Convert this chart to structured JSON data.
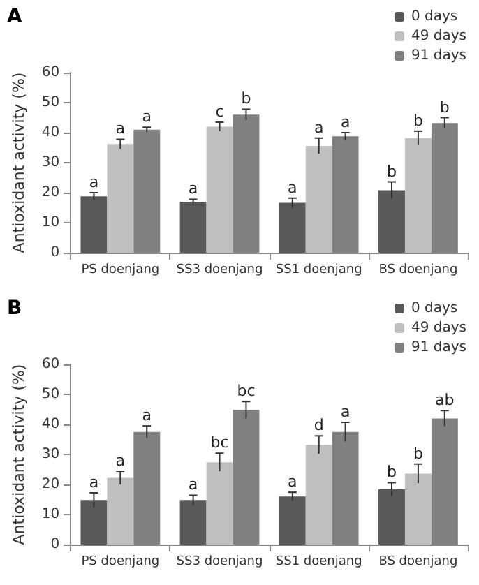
{
  "chart_data": [
    {
      "type": "bar",
      "title": "A",
      "ylabel": "Antioxidant activity (%)",
      "categories": [
        "PS doenjang",
        "SS3 doenjang",
        "SS1 doenjang",
        "BS doenjang"
      ],
      "ylim": [
        0,
        60
      ],
      "yticks": [
        0,
        10,
        20,
        30,
        40,
        50,
        60
      ],
      "grid": false,
      "legend": "top right",
      "series": [
        {
          "name": "0 days",
          "color": "#595959",
          "values": [
            18.8,
            17,
            16.6,
            20.8
          ],
          "errors": [
            1.2,
            0.8,
            1.6,
            2.8
          ],
          "value_labels": [
            "a",
            "a",
            "a",
            "b"
          ]
        },
        {
          "name": "49 days",
          "color": "#bfbfbf",
          "values": [
            36.2,
            42,
            35.6,
            38.2
          ],
          "errors": [
            1.6,
            1.5,
            2.6,
            2.3
          ],
          "value_labels": [
            "a",
            "c",
            "a",
            "b"
          ]
        },
        {
          "name": "91 days",
          "color": "#808080",
          "values": [
            41,
            46,
            38.8,
            43.2
          ],
          "errors": [
            0.8,
            1.8,
            1.2,
            1.8
          ],
          "value_labels": [
            "a",
            "b",
            "a",
            "b"
          ]
        }
      ]
    },
    {
      "type": "bar",
      "title": "B",
      "ylabel": "Antioxidant activity (%)",
      "categories": [
        "PS doenjang",
        "SS3 doenjang",
        "SS1 doenjang",
        "BS doenjang"
      ],
      "ylim": [
        0,
        60
      ],
      "yticks": [
        0,
        10,
        20,
        30,
        40,
        50,
        60
      ],
      "grid": false,
      "legend": "top right",
      "series": [
        {
          "name": "0 days",
          "color": "#595959",
          "values": [
            14.8,
            14.8,
            16,
            18.4
          ],
          "errors": [
            2.4,
            1.6,
            1.4,
            2.2
          ],
          "value_labels": [
            "a",
            "a",
            "a",
            "b"
          ]
        },
        {
          "name": "49 days",
          "color": "#bfbfbf",
          "values": [
            22.2,
            27.4,
            33.2,
            23.6
          ],
          "errors": [
            2.2,
            3,
            3,
            3.2
          ],
          "value_labels": [
            "a",
            "bc",
            "d",
            "b"
          ]
        },
        {
          "name": "91 days",
          "color": "#808080",
          "values": [
            37.5,
            44.8,
            37.5,
            42
          ],
          "errors": [
            2,
            2.8,
            3.2,
            2.6
          ],
          "value_labels": [
            "a",
            "bc",
            "a",
            "ab"
          ]
        }
      ]
    }
  ]
}
